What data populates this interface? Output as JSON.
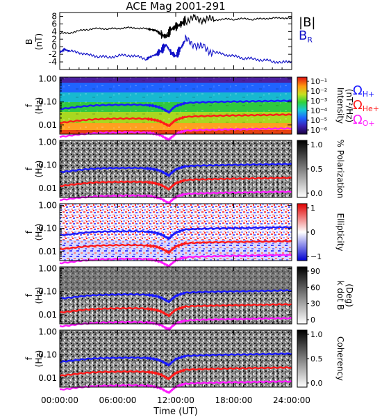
{
  "figure": {
    "title": "ACE Mag 2001-291",
    "xlabel": "Time (UT)",
    "x_ticks": [
      "00:00:00",
      "06:00:00",
      "12:00:00",
      "18:00:00",
      "24:00:00"
    ],
    "x_tick_hours": [
      0,
      6,
      12,
      18,
      24
    ],
    "xlim": [
      0,
      24
    ]
  },
  "chart_data": [
    {
      "type": "line",
      "panel": "magnetic-field",
      "ylabel": "B\n(nT)",
      "ylim": [
        -6,
        9
      ],
      "y_ticks": [
        8,
        6,
        4,
        2,
        0,
        -2,
        -4
      ],
      "y_tick_labels": [
        "8",
        "6",
        "4",
        "2",
        "0",
        "-2",
        "-4"
      ],
      "legend": [
        "|B|",
        "B_R"
      ],
      "legend_display": {
        "total": "|B|",
        "radial_main": "B",
        "radial_sub": "R"
      },
      "series": [
        {
          "name": "|B|",
          "color": "#000000",
          "x": [
            0,
            1,
            2,
            3,
            4,
            5,
            6,
            7,
            8,
            9,
            9.5,
            10,
            10.5,
            11,
            11.5,
            12,
            12.5,
            13,
            14,
            15,
            16,
            17,
            18,
            19,
            20,
            21,
            22,
            23,
            24
          ],
          "y": [
            3.5,
            3.6,
            4.2,
            4.6,
            4.8,
            4.7,
            4.8,
            5.0,
            4.9,
            4.7,
            4.5,
            4.2,
            3.2,
            2.6,
            4.5,
            5.2,
            5.8,
            7.0,
            7.3,
            7.2,
            7.0,
            7.3,
            7.2,
            7.4,
            7.2,
            7.4,
            7.5,
            7.6,
            7.4
          ]
        },
        {
          "name": "B_R",
          "color": "#1010c8",
          "x": [
            0,
            0.5,
            1,
            2,
            3,
            4,
            5,
            6,
            7,
            8,
            9,
            9.5,
            10,
            10.5,
            11,
            11.5,
            12,
            12.5,
            13,
            14,
            15,
            16,
            17,
            18,
            19,
            20,
            21,
            22,
            23,
            24
          ],
          "y": [
            -1.5,
            -0.7,
            -1.2,
            -1.5,
            -2.2,
            -2.5,
            -2.8,
            -2.4,
            -2.2,
            -2.6,
            -3.2,
            -2.5,
            -2.0,
            -1.0,
            0.5,
            -1.5,
            -2.5,
            -0.5,
            1.8,
            0.5,
            -0.5,
            -1.5,
            -2.0,
            -2.5,
            -3.0,
            -3.2,
            -3.5,
            -3.8,
            -4.2,
            -3.8
          ]
        }
      ]
    },
    {
      "type": "heatmap",
      "panel": "intensity",
      "ylabel": "f\n(Hz)",
      "y_scale": "log",
      "ylim": [
        0.004,
        1.2
      ],
      "y_ticks": [
        1.0,
        0.1,
        0.01
      ],
      "y_tick_labels": [
        "1.00",
        "0.10",
        "0.01"
      ],
      "colorbar": {
        "label": "Intensity\n(nT²/Hz)",
        "colormap": "rainbow",
        "ticks": [
          "10⁻¹",
          "10⁻²",
          "10⁻³",
          "10⁻⁴",
          "10⁻⁵",
          "10⁻⁶"
        ]
      }
    },
    {
      "type": "heatmap",
      "panel": "polarization",
      "ylabel": "f\n(Hz)",
      "y_scale": "log",
      "ylim": [
        0.004,
        1.2
      ],
      "y_ticks": [
        1.0,
        0.1,
        0.01
      ],
      "y_tick_labels": [
        "1.00",
        "0.10",
        "0.01"
      ],
      "colorbar": {
        "label": "% Polarization",
        "colormap": "grayscale",
        "ticks": [
          "1.0",
          "0.5",
          "0.0"
        ]
      }
    },
    {
      "type": "heatmap",
      "panel": "ellipticity",
      "ylabel": "f\n(Hz)",
      "y_scale": "log",
      "ylim": [
        0.004,
        1.2
      ],
      "y_ticks": [
        1.0,
        0.1,
        0.01
      ],
      "y_tick_labels": [
        "1.00",
        "0.10",
        "0.01"
      ],
      "colorbar": {
        "label": "Ellipticity",
        "colormap": "blue-white-red",
        "ticks": [
          "1",
          "0",
          "−1"
        ]
      }
    },
    {
      "type": "heatmap",
      "panel": "k-dot-b",
      "ylabel": "f\n(Hz)",
      "y_scale": "log",
      "ylim": [
        0.004,
        1.2
      ],
      "y_ticks": [
        1.0,
        0.1,
        0.01
      ],
      "y_tick_labels": [
        "1.00",
        "0.10",
        "0.01"
      ],
      "colorbar": {
        "label": "k dot B\n(Deg)",
        "colormap": "grayscale",
        "ticks": [
          "90",
          "60",
          "30",
          "0"
        ]
      }
    },
    {
      "type": "heatmap",
      "panel": "coherency",
      "ylabel": "f\n(Hz)",
      "y_scale": "log",
      "ylim": [
        0.004,
        1.2
      ],
      "y_ticks": [
        1.0,
        0.1,
        0.01
      ],
      "y_tick_labels": [
        "1.00",
        "0.10",
        "0.01"
      ],
      "colorbar": {
        "label": "Coherency",
        "colormap": "grayscale",
        "ticks": [
          "1.0",
          "0.5",
          "0.0"
        ]
      }
    }
  ],
  "gyrofrequency_lines": {
    "legend_labels": [
      "ΩH+",
      "ΩHe+",
      "ΩO+"
    ],
    "legend_display": [
      {
        "symbol": "Ω",
        "sub": "H+"
      },
      {
        "symbol": "Ω",
        "sub": "He+"
      },
      {
        "symbol": "Ω",
        "sub": "O+"
      }
    ],
    "series": [
      {
        "name": "ΩH+",
        "color": "#1a1aff",
        "x": [
          0,
          1,
          2,
          3,
          4,
          5,
          6,
          7,
          8,
          9,
          9.5,
          10,
          10.5,
          11,
          11.3,
          11.6,
          12,
          12.5,
          13,
          14,
          15,
          16,
          17,
          18,
          19,
          20,
          21,
          22,
          23,
          24
        ],
        "y": [
          0.05,
          0.055,
          0.062,
          0.068,
          0.072,
          0.074,
          0.075,
          0.076,
          0.076,
          0.073,
          0.07,
          0.064,
          0.055,
          0.042,
          0.036,
          0.048,
          0.066,
          0.078,
          0.09,
          0.095,
          0.098,
          0.1,
          0.102,
          0.104,
          0.104,
          0.107,
          0.108,
          0.11,
          0.112,
          0.112
        ]
      },
      {
        "name": "ΩHe+",
        "color": "#ff1a1a",
        "x": [
          0,
          1,
          2,
          3,
          4,
          5,
          6,
          7,
          8,
          9,
          9.5,
          10,
          10.5,
          11,
          11.3,
          11.6,
          12,
          12.5,
          13,
          14,
          15,
          16,
          17,
          18,
          19,
          20,
          21,
          22,
          23,
          24
        ],
        "y": [
          0.0125,
          0.0138,
          0.0155,
          0.017,
          0.018,
          0.0185,
          0.0188,
          0.019,
          0.019,
          0.0183,
          0.0175,
          0.016,
          0.0138,
          0.0105,
          0.009,
          0.012,
          0.0165,
          0.0195,
          0.0225,
          0.0238,
          0.0245,
          0.025,
          0.0255,
          0.026,
          0.026,
          0.0268,
          0.027,
          0.0275,
          0.028,
          0.028
        ]
      },
      {
        "name": "ΩO+",
        "color": "#ff1aff",
        "x": [
          0,
          1,
          2,
          3,
          4,
          5,
          6,
          7,
          8,
          9,
          9.5,
          10,
          10.5,
          11,
          11.3,
          11.6,
          12,
          12.5,
          13,
          14,
          15,
          16,
          17,
          18,
          19,
          20,
          21,
          22,
          23,
          24
        ],
        "y": [
          0.0031,
          0.0034,
          0.0039,
          0.0042,
          0.0045,
          0.0046,
          0.0047,
          0.0048,
          0.0048,
          0.0046,
          0.0044,
          0.004,
          0.0035,
          0.0026,
          0.0023,
          0.003,
          0.0041,
          0.0049,
          0.0056,
          0.0059,
          0.0061,
          0.0062,
          0.0064,
          0.0065,
          0.0065,
          0.0067,
          0.0068,
          0.0069,
          0.007,
          0.007
        ]
      }
    ]
  }
}
